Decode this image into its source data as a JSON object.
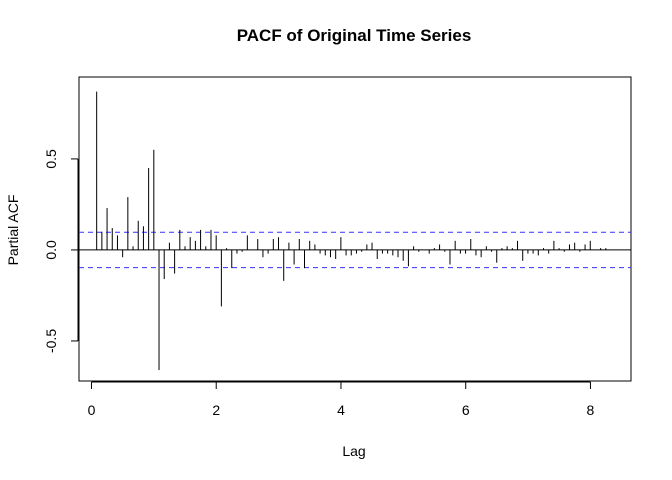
{
  "chart_data": {
    "type": "bar",
    "subtype": "pacf-stem",
    "title": "PACF of Original Time Series",
    "xlabel": "Lag",
    "ylabel": "Partial ACF",
    "xlim": [
      -0.2,
      8.65
    ],
    "ylim": [
      -0.72,
      0.95
    ],
    "x_ticks": [
      0,
      2,
      4,
      6,
      8
    ],
    "x_tick_labels": [
      "0",
      "2",
      "4",
      "6",
      "8"
    ],
    "y_ticks": [
      -0.5,
      0.0,
      0.5
    ],
    "y_tick_labels": [
      "-0.5",
      "0.0",
      "0.5"
    ],
    "confidence_bound": 0.097,
    "grid": false,
    "lag_step": 0.0833,
    "values": [
      0.87,
      0.1,
      0.23,
      0.12,
      0.08,
      -0.04,
      0.29,
      0.02,
      0.16,
      0.13,
      0.45,
      0.55,
      -0.66,
      -0.16,
      0.04,
      -0.13,
      0.11,
      0.02,
      0.07,
      0.05,
      0.11,
      0.02,
      0.11,
      0.08,
      -0.31,
      0.01,
      -0.1,
      -0.02,
      -0.01,
      0.08,
      0.0,
      0.06,
      -0.04,
      -0.02,
      0.06,
      0.07,
      -0.17,
      0.04,
      -0.08,
      0.06,
      -0.1,
      0.05,
      0.03,
      -0.02,
      -0.03,
      -0.04,
      -0.05,
      0.07,
      -0.03,
      -0.03,
      -0.02,
      -0.01,
      0.03,
      0.04,
      -0.05,
      -0.02,
      -0.02,
      -0.03,
      -0.04,
      -0.06,
      -0.09,
      0.02,
      -0.01,
      0.0,
      -0.02,
      0.01,
      0.03,
      -0.01,
      -0.08,
      0.05,
      -0.02,
      -0.02,
      0.06,
      -0.03,
      -0.04,
      0.02,
      -0.01,
      -0.07,
      0.01,
      0.02,
      0.01,
      0.05,
      -0.06,
      -0.02,
      -0.02,
      -0.03,
      0.01,
      -0.02,
      0.05,
      0.01,
      -0.01,
      0.03,
      0.04,
      -0.01,
      0.03,
      0.05,
      0.0,
      0.01,
      0.01
    ]
  }
}
